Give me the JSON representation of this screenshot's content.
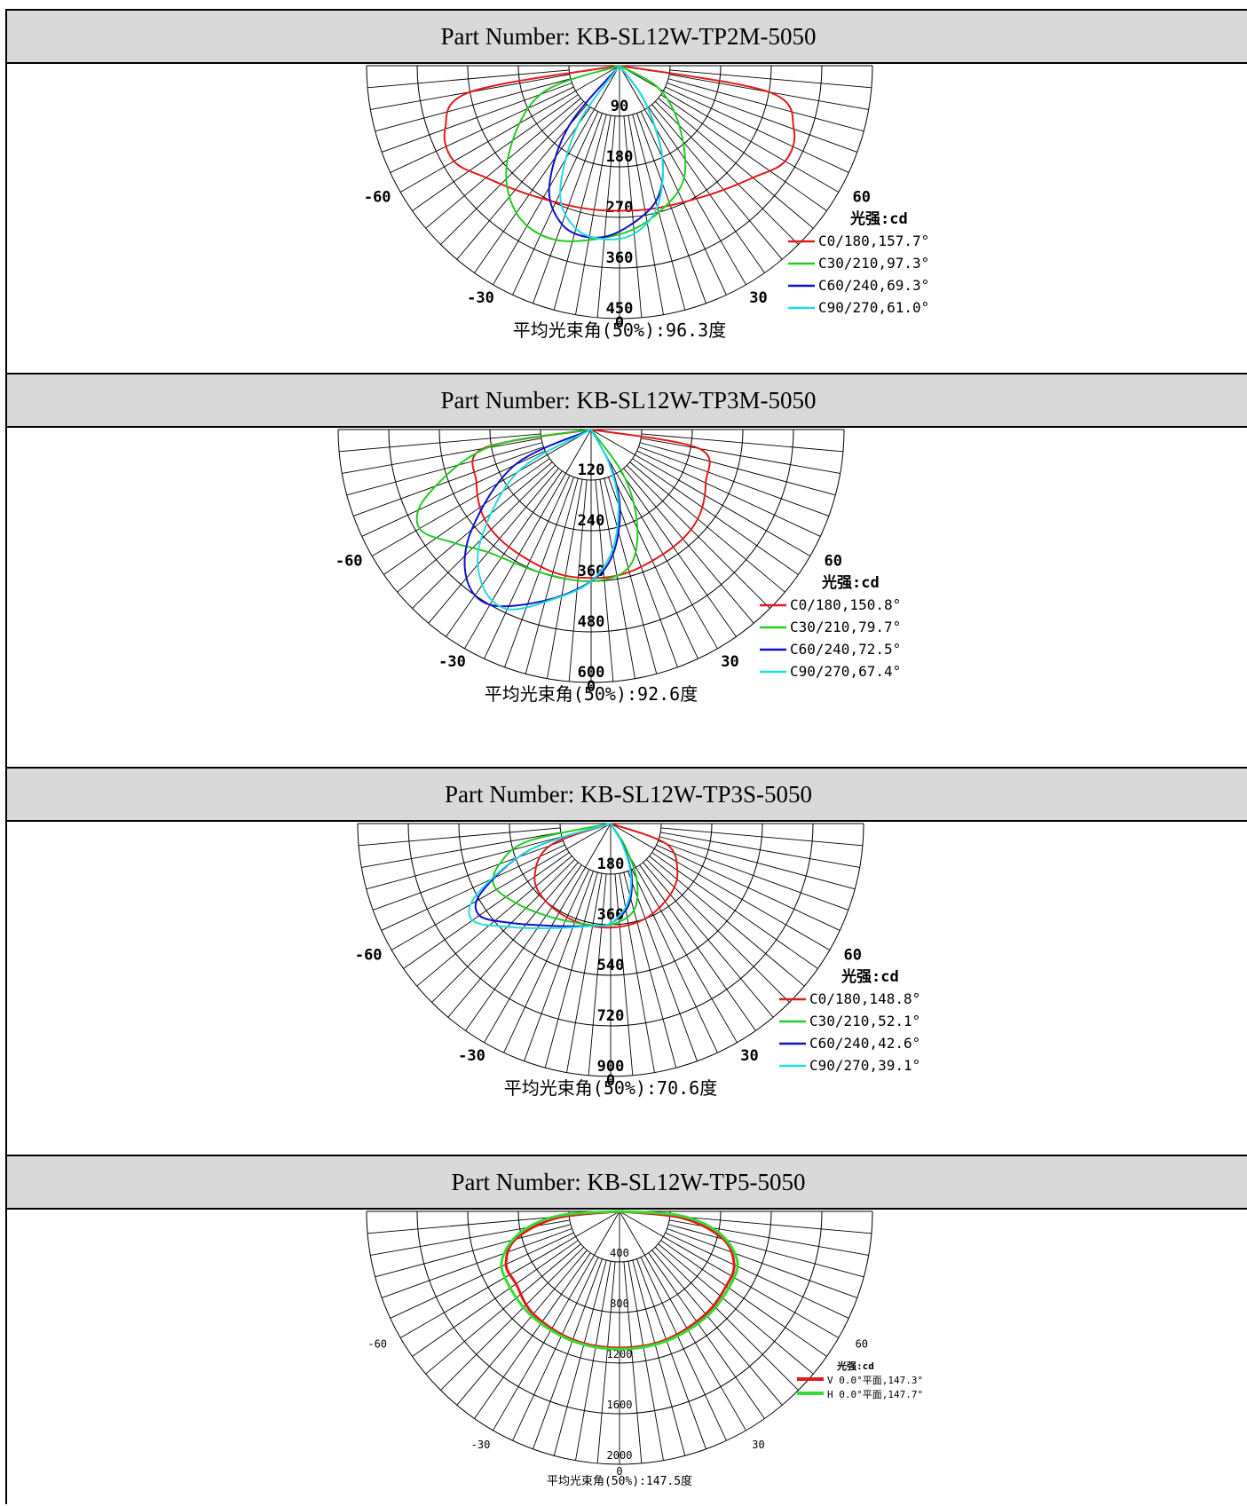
{
  "sections": [
    {
      "part_label": "Part Number: KB-SL12W-TP2M-5050",
      "chart_data": {
        "type": "polar",
        "radial_ticks": [
          "90",
          "180",
          "270",
          "360",
          "450"
        ],
        "radial_max": 450,
        "angle_labels": {
          "left_60": "-60",
          "right_60": "60",
          "left_30": "-30",
          "right_30": "30",
          "bottom": "0"
        },
        "legend_title": "光强:cd",
        "series": [
          {
            "name": "C0/180,157.7°",
            "color": "#e31a1c",
            "values": [
              {
                "angle": -80,
                "r": 270
              },
              {
                "angle": -70,
                "r": 330
              },
              {
                "angle": -60,
                "r": 340
              },
              {
                "angle": -50,
                "r": 310
              },
              {
                "angle": -35,
                "r": 280
              },
              {
                "angle": -15,
                "r": 262
              },
              {
                "angle": 0,
                "r": 258
              },
              {
                "angle": 15,
                "r": 262
              },
              {
                "angle": 35,
                "r": 280
              },
              {
                "angle": 50,
                "r": 310
              },
              {
                "angle": 60,
                "r": 340
              },
              {
                "angle": 70,
                "r": 330
              },
              {
                "angle": 80,
                "r": 270
              }
            ]
          },
          {
            "name": "C30/210,97.3°",
            "color": "#22cc22",
            "values": [
              {
                "angle": -70,
                "r": 150
              },
              {
                "angle": -50,
                "r": 260
              },
              {
                "angle": -35,
                "r": 320
              },
              {
                "angle": -20,
                "r": 330
              },
              {
                "angle": 0,
                "r": 300
              },
              {
                "angle": 15,
                "r": 270
              },
              {
                "angle": 30,
                "r": 230
              },
              {
                "angle": 45,
                "r": 150
              },
              {
                "angle": 60,
                "r": 80
              }
            ]
          },
          {
            "name": "C60/240,69.3°",
            "color": "#1010cc",
            "values": [
              {
                "angle": -40,
                "r": 140
              },
              {
                "angle": -30,
                "r": 250
              },
              {
                "angle": -20,
                "r": 300
              },
              {
                "angle": -10,
                "r": 310
              },
              {
                "angle": 0,
                "r": 295
              },
              {
                "angle": 15,
                "r": 250
              },
              {
                "angle": 25,
                "r": 180
              },
              {
                "angle": 35,
                "r": 80
              }
            ]
          },
          {
            "name": "C90/270,61.0°",
            "color": "#22dddd",
            "values": [
              {
                "angle": -35,
                "r": 130
              },
              {
                "angle": -25,
                "r": 250
              },
              {
                "angle": -15,
                "r": 300
              },
              {
                "angle": -5,
                "r": 310
              },
              {
                "angle": 5,
                "r": 300
              },
              {
                "angle": 15,
                "r": 260
              },
              {
                "angle": 25,
                "r": 180
              },
              {
                "angle": 35,
                "r": 80
              }
            ]
          }
        ],
        "beam_angle_text": "平均光束角(50%):96.3度"
      }
    },
    {
      "part_label": "Part Number: KB-SL12W-TP3M-5050",
      "chart_data": {
        "type": "polar",
        "radial_ticks": [
          "120",
          "240",
          "360",
          "480",
          "600"
        ],
        "radial_max": 600,
        "angle_labels": {
          "left_60": "-60",
          "right_60": "60",
          "left_30": "-30",
          "right_30": "30",
          "bottom": "0"
        },
        "legend_title": "光强:cd",
        "series": [
          {
            "name": "C0/180,150.8°",
            "color": "#e31a1c",
            "values": [
              {
                "angle": -80,
                "r": 260
              },
              {
                "angle": -65,
                "r": 300
              },
              {
                "angle": -50,
                "r": 330
              },
              {
                "angle": -35,
                "r": 340
              },
              {
                "angle": -15,
                "r": 350
              },
              {
                "angle": 0,
                "r": 352
              },
              {
                "angle": 15,
                "r": 350
              },
              {
                "angle": 35,
                "r": 340
              },
              {
                "angle": 50,
                "r": 330
              },
              {
                "angle": 65,
                "r": 300
              },
              {
                "angle": 80,
                "r": 260
              }
            ]
          },
          {
            "name": "C30/210,79.7°",
            "color": "#22cc22",
            "values": [
              {
                "angle": -80,
                "r": 250
              },
              {
                "angle": -68,
                "r": 420
              },
              {
                "angle": -60,
                "r": 470
              },
              {
                "angle": -50,
                "r": 420
              },
              {
                "angle": -40,
                "r": 380
              },
              {
                "angle": -20,
                "r": 360
              },
              {
                "angle": 0,
                "r": 360
              },
              {
                "angle": 15,
                "r": 340
              },
              {
                "angle": 25,
                "r": 260
              },
              {
                "angle": 35,
                "r": 140
              }
            ]
          },
          {
            "name": "C60/240,72.5°",
            "color": "#1010cc",
            "values": [
              {
                "angle": -65,
                "r": 200
              },
              {
                "angle": -50,
                "r": 370
              },
              {
                "angle": -40,
                "r": 460
              },
              {
                "angle": -30,
                "r": 480
              },
              {
                "angle": -15,
                "r": 420
              },
              {
                "angle": 0,
                "r": 360
              },
              {
                "angle": 10,
                "r": 300
              },
              {
                "angle": 20,
                "r": 200
              },
              {
                "angle": 28,
                "r": 100
              }
            ]
          },
          {
            "name": "C90/270,67.4°",
            "color": "#22dddd",
            "values": [
              {
                "angle": -60,
                "r": 200
              },
              {
                "angle": -45,
                "r": 370
              },
              {
                "angle": -35,
                "r": 450
              },
              {
                "angle": -25,
                "r": 470
              },
              {
                "angle": -12,
                "r": 410
              },
              {
                "angle": 0,
                "r": 360
              },
              {
                "angle": 10,
                "r": 290
              },
              {
                "angle": 20,
                "r": 190
              },
              {
                "angle": 28,
                "r": 90
              }
            ]
          }
        ],
        "beam_angle_text": "平均光束角(50%):92.6度"
      }
    },
    {
      "part_label": "Part Number: KB-SL12W-TP3S-5050",
      "chart_data": {
        "type": "polar",
        "radial_ticks": [
          "180",
          "360",
          "540",
          "720",
          "900"
        ],
        "radial_max": 900,
        "angle_labels": {
          "left_60": "-60",
          "right_60": "60",
          "left_30": "-30",
          "right_30": "30",
          "bottom": "0"
        },
        "legend_title": "光强:cd",
        "series": [
          {
            "name": "C0/180,148.8°",
            "color": "#e31a1c",
            "values": [
              {
                "angle": -70,
                "r": 230
              },
              {
                "angle": -55,
                "r": 330
              },
              {
                "angle": -40,
                "r": 360
              },
              {
                "angle": -20,
                "r": 370
              },
              {
                "angle": 0,
                "r": 370
              },
              {
                "angle": 20,
                "r": 360
              },
              {
                "angle": 40,
                "r": 330
              },
              {
                "angle": 55,
                "r": 290
              },
              {
                "angle": 70,
                "r": 210
              }
            ]
          },
          {
            "name": "C30/210,52.1°",
            "color": "#22cc22",
            "values": [
              {
                "angle": -78,
                "r": 300
              },
              {
                "angle": -70,
                "r": 420
              },
              {
                "angle": -62,
                "r": 470
              },
              {
                "angle": -50,
                "r": 440
              },
              {
                "angle": -35,
                "r": 400
              },
              {
                "angle": -15,
                "r": 370
              },
              {
                "angle": 0,
                "r": 360
              },
              {
                "angle": 15,
                "r": 320
              },
              {
                "angle": 25,
                "r": 220
              },
              {
                "angle": 32,
                "r": 100
              }
            ]
          },
          {
            "name": "C60/240,42.6°",
            "color": "#1010cc",
            "values": [
              {
                "angle": -72,
                "r": 300
              },
              {
                "angle": -62,
                "r": 520
              },
              {
                "angle": -55,
                "r": 570
              },
              {
                "angle": -45,
                "r": 500
              },
              {
                "angle": -30,
                "r": 420
              },
              {
                "angle": -10,
                "r": 370
              },
              {
                "angle": 0,
                "r": 355
              },
              {
                "angle": 12,
                "r": 300
              },
              {
                "angle": 22,
                "r": 200
              },
              {
                "angle": 30,
                "r": 90
              }
            ]
          },
          {
            "name": "C90/270,39.1°",
            "color": "#22dddd",
            "values": [
              {
                "angle": -72,
                "r": 300
              },
              {
                "angle": -62,
                "r": 540
              },
              {
                "angle": -55,
                "r": 600
              },
              {
                "angle": -45,
                "r": 520
              },
              {
                "angle": -30,
                "r": 430
              },
              {
                "angle": -10,
                "r": 370
              },
              {
                "angle": 0,
                "r": 355
              },
              {
                "angle": 12,
                "r": 290
              },
              {
                "angle": 22,
                "r": 190
              },
              {
                "angle": 30,
                "r": 80
              }
            ]
          }
        ],
        "beam_angle_text": "平均光束角(50%):70.6度"
      }
    },
    {
      "part_label": "Part Number: KB-SL12W-TP5-5050",
      "chart_data": {
        "type": "polar",
        "radial_ticks": [
          "400",
          "800",
          "1200",
          "1600",
          "2000"
        ],
        "radial_max": 2000,
        "angle_labels": {
          "left_60": "-60",
          "right_60": "60",
          "left_30": "-30",
          "right_30": "30",
          "bottom": "0"
        },
        "legend_title": "光强:cd",
        "series": [
          {
            "name": "V 0.0°平面,147.3°",
            "color": "#e31a1c",
            "values": [
              {
                "angle": -84,
                "r": 500
              },
              {
                "angle": -75,
                "r": 850
              },
              {
                "angle": -65,
                "r": 990
              },
              {
                "angle": -55,
                "r": 1000
              },
              {
                "angle": -40,
                "r": 1060
              },
              {
                "angle": -20,
                "r": 1080
              },
              {
                "angle": 0,
                "r": 1080
              },
              {
                "angle": 20,
                "r": 1080
              },
              {
                "angle": 40,
                "r": 1060
              },
              {
                "angle": 55,
                "r": 1030
              },
              {
                "angle": 65,
                "r": 1000
              },
              {
                "angle": 75,
                "r": 850
              },
              {
                "angle": 84,
                "r": 500
              }
            ]
          },
          {
            "name": "H 0.0°平面,147.7°",
            "color": "#33dd33",
            "values": [
              {
                "angle": -86,
                "r": 480
              },
              {
                "angle": -78,
                "r": 800
              },
              {
                "angle": -68,
                "r": 1000
              },
              {
                "angle": -58,
                "r": 1050
              },
              {
                "angle": -40,
                "r": 1080
              },
              {
                "angle": -20,
                "r": 1090
              },
              {
                "angle": 0,
                "r": 1090
              },
              {
                "angle": 20,
                "r": 1090
              },
              {
                "angle": 40,
                "r": 1080
              },
              {
                "angle": 58,
                "r": 1050
              },
              {
                "angle": 68,
                "r": 1000
              },
              {
                "angle": 78,
                "r": 800
              },
              {
                "angle": 86,
                "r": 480
              }
            ]
          }
        ],
        "beam_angle_text": "平均光束角(50%):147.5度"
      }
    }
  ]
}
